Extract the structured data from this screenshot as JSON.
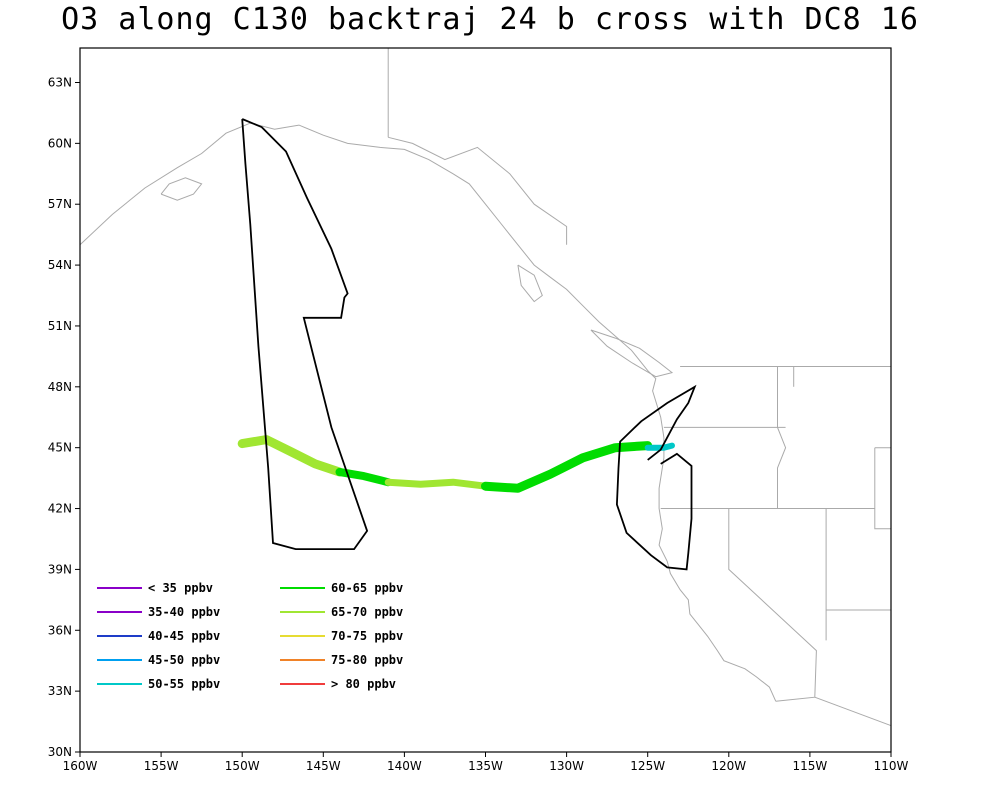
{
  "title": "O3 along C130 backtraj 24 b cross with DC8 16",
  "axes": {
    "lon_ticks": [
      "160W",
      "155W",
      "150W",
      "145W",
      "140W",
      "135W",
      "130W",
      "125W",
      "120W",
      "115W",
      "110W"
    ],
    "lat_ticks": [
      "30N",
      "33N",
      "36N",
      "39N",
      "42N",
      "45N",
      "48N",
      "51N",
      "54N",
      "57N",
      "60N",
      "63N"
    ]
  },
  "legend": [
    {
      "label": "< 35 ppbv",
      "color": "#8a00c8"
    },
    {
      "label": "35-40 ppbv",
      "color": "#8a00c8"
    },
    {
      "label": "40-45 ppbv",
      "color": "#1e3cc8"
    },
    {
      "label": "45-50 ppbv",
      "color": "#00a0f0"
    },
    {
      "label": "50-55 ppbv",
      "color": "#00c8c8"
    },
    {
      "label": "60-65 ppbv",
      "color": "#00dc00"
    },
    {
      "label": "65-70 ppbv",
      "color": "#a0e632"
    },
    {
      "label": "70-75 ppbv",
      "color": "#e6dc32"
    },
    {
      "label": "75-80 ppbv",
      "color": "#f08228"
    },
    {
      "label": "> 80 ppbv",
      "color": "#f03c3c"
    }
  ],
  "chart_data": {
    "type": "map",
    "projection": "lat-lon",
    "xlim": [
      -160,
      -110
    ],
    "ylim": [
      30,
      64.7
    ],
    "flight_track_color": "#000000",
    "coastline_color": "#aaaaaa",
    "flight_track": [
      [
        -150.0,
        61.2
      ],
      [
        -148.8,
        60.8
      ],
      [
        -147.3,
        59.6
      ],
      [
        -146.0,
        57.3
      ],
      [
        -144.5,
        54.8
      ],
      [
        -143.5,
        52.6
      ],
      [
        -143.7,
        52.4
      ],
      [
        -143.9,
        51.4
      ],
      [
        -146.2,
        51.4
      ],
      [
        -144.5,
        46.0
      ],
      [
        -142.3,
        40.9
      ],
      [
        -143.1,
        40.0
      ],
      [
        -146.7,
        40.0
      ],
      [
        -148.1,
        40.3
      ],
      [
        -148.4,
        44.0
      ],
      [
        -149.0,
        50.0
      ],
      [
        -149.5,
        56.0
      ],
      [
        -149.8,
        59.0
      ],
      [
        -150.0,
        61.2
      ]
    ],
    "flight_track_2": [
      [
        -124.2,
        44.2
      ],
      [
        -123.2,
        44.7
      ],
      [
        -122.3,
        44.1
      ],
      [
        -122.3,
        41.5
      ],
      [
        -122.5,
        39.8
      ],
      [
        -122.6,
        39.0
      ],
      [
        -123.8,
        39.1
      ],
      [
        -124.8,
        39.7
      ],
      [
        -126.3,
        40.8
      ],
      [
        -126.9,
        42.2
      ],
      [
        -126.8,
        44.0
      ],
      [
        -126.7,
        45.3
      ],
      [
        -125.4,
        46.3
      ],
      [
        -123.8,
        47.2
      ],
      [
        -122.1,
        48.0
      ],
      [
        -122.5,
        47.2
      ],
      [
        -123.2,
        46.4
      ],
      [
        -124.2,
        44.9
      ],
      [
        -125.0,
        44.4
      ]
    ],
    "trajectory_segments": [
      {
        "color": "#a0e632",
        "width": 9,
        "points": [
          [
            -150.0,
            45.2
          ],
          [
            -148.5,
            45.4
          ],
          [
            -147.0,
            44.8
          ],
          [
            -145.5,
            44.2
          ],
          [
            -144.0,
            43.8
          ]
        ]
      },
      {
        "color": "#00dc00",
        "width": 8,
        "points": [
          [
            -144.0,
            43.8
          ],
          [
            -142.5,
            43.6
          ],
          [
            -141.0,
            43.3
          ]
        ]
      },
      {
        "color": "#a0e632",
        "width": 7,
        "points": [
          [
            -141.0,
            43.3
          ],
          [
            -139.0,
            43.2
          ],
          [
            -137.0,
            43.3
          ],
          [
            -135.0,
            43.1
          ]
        ]
      },
      {
        "color": "#00dc00",
        "width": 9,
        "points": [
          [
            -135.0,
            43.1
          ],
          [
            -133.0,
            43.0
          ],
          [
            -131.0,
            43.7
          ],
          [
            -129.0,
            44.5
          ],
          [
            -127.0,
            45.0
          ],
          [
            -125.0,
            45.1
          ]
        ]
      },
      {
        "color": "#00c8c8",
        "width": 6,
        "points": [
          [
            -125.0,
            45.0
          ],
          [
            -124.0,
            45.0
          ],
          [
            -123.5,
            45.1
          ]
        ]
      }
    ],
    "coastline": [
      [
        [
          -160,
          55.0
        ],
        [
          -158.0,
          56.5
        ],
        [
          -156.0,
          57.8
        ],
        [
          -154.0,
          58.8
        ],
        [
          -152.5,
          59.5
        ],
        [
          -151.0,
          60.5
        ],
        [
          -149.5,
          61.0
        ],
        [
          -148.0,
          60.7
        ],
        [
          -146.5,
          60.9
        ],
        [
          -145.0,
          60.4
        ],
        [
          -143.5,
          60.0
        ],
        [
          -141.5,
          59.8
        ],
        [
          -140.0,
          59.7
        ],
        [
          -138.5,
          59.2
        ],
        [
          -137.0,
          58.5
        ],
        [
          -136.0,
          58.0
        ],
        [
          -135.0,
          57.0
        ],
        [
          -134.0,
          56.0
        ],
        [
          -133.0,
          55.0
        ],
        [
          -132.0,
          54.0
        ],
        [
          -131.0,
          53.4
        ],
        [
          -130.0,
          52.8
        ],
        [
          -129.0,
          52.0
        ],
        [
          -128.0,
          51.2
        ],
        [
          -127.0,
          50.5
        ],
        [
          -126.0,
          49.8
        ],
        [
          -125.0,
          48.8
        ],
        [
          -124.5,
          48.4
        ],
        [
          -124.7,
          47.8
        ],
        [
          -124.2,
          46.5
        ],
        [
          -124.0,
          45.5
        ],
        [
          -124.0,
          44.5
        ],
        [
          -124.3,
          43.0
        ],
        [
          -124.3,
          42.0
        ],
        [
          -124.1,
          41.0
        ],
        [
          -124.3,
          40.2
        ],
        [
          -123.8,
          39.4
        ],
        [
          -123.6,
          38.8
        ],
        [
          -123.0,
          38.0
        ],
        [
          -122.5,
          37.5
        ],
        [
          -122.4,
          36.8
        ],
        [
          -121.9,
          36.3
        ],
        [
          -121.3,
          35.7
        ],
        [
          -120.7,
          35.0
        ],
        [
          -120.3,
          34.5
        ],
        [
          -119.0,
          34.1
        ],
        [
          -118.3,
          33.7
        ],
        [
          -117.5,
          33.2
        ],
        [
          -117.1,
          32.5
        ]
      ],
      [
        [
          -155,
          57.5
        ],
        [
          -154,
          57.2
        ],
        [
          -153,
          57.5
        ],
        [
          -152.5,
          58.0
        ],
        [
          -153.5,
          58.3
        ],
        [
          -154.5,
          58.0
        ],
        [
          -155,
          57.5
        ]
      ],
      [
        [
          -133.0,
          54.0
        ],
        [
          -132.0,
          53.5
        ],
        [
          -131.5,
          52.5
        ],
        [
          -132.0,
          52.2
        ],
        [
          -132.8,
          53.0
        ],
        [
          -133.0,
          54.0
        ]
      ],
      [
        [
          -128.5,
          50.8
        ],
        [
          -127.0,
          50.4
        ],
        [
          -125.5,
          49.9
        ],
        [
          -124.3,
          49.2
        ],
        [
          -123.5,
          48.7
        ],
        [
          -124.5,
          48.5
        ],
        [
          -126.0,
          49.2
        ],
        [
          -127.5,
          50.0
        ],
        [
          -128.5,
          50.8
        ]
      ]
    ],
    "borders": [
      [
        [
          -141.0,
          64.7
        ],
        [
          -141.0,
          60.3
        ]
      ],
      [
        [
          -141.0,
          60.3
        ],
        [
          -139.5,
          60.0
        ],
        [
          -137.5,
          59.2
        ],
        [
          -135.5,
          59.8
        ],
        [
          -133.5,
          58.5
        ],
        [
          -132.0,
          57.0
        ],
        [
          -130.0,
          55.9
        ],
        [
          -130.0,
          55.0
        ]
      ],
      [
        [
          -123.0,
          49.0
        ],
        [
          -110,
          49.0
        ]
      ],
      [
        [
          -117.0,
          49.0
        ],
        [
          -117.0,
          46.0
        ],
        [
          -116.5,
          46.0
        ]
      ],
      [
        [
          -124.0,
          46.0
        ],
        [
          -117.0,
          46.0
        ],
        [
          -116.5,
          45.0
        ],
        [
          -117.0,
          44.0
        ],
        [
          -117.0,
          42.0
        ]
      ],
      [
        [
          -124.2,
          42.0
        ],
        [
          -111.0,
          42.0
        ]
      ],
      [
        [
          -120.0,
          42.0
        ],
        [
          -120.0,
          39.0
        ],
        [
          -114.6,
          35.0
        ],
        [
          -114.7,
          32.7
        ],
        [
          -117.1,
          32.5
        ]
      ],
      [
        [
          -114.0,
          42.0
        ],
        [
          -114.0,
          35.5
        ]
      ],
      [
        [
          -116.0,
          49.0
        ],
        [
          -116.0,
          48.0
        ]
      ],
      [
        [
          -111.0,
          45.0
        ],
        [
          -110,
          45.0
        ]
      ],
      [
        [
          -111.0,
          45.0
        ],
        [
          -111.0,
          41.0
        ],
        [
          -110,
          41.0
        ]
      ],
      [
        [
          -114.0,
          37.0
        ],
        [
          -110,
          37.0
        ]
      ],
      [
        [
          -114.7,
          32.7
        ],
        [
          -110,
          31.3
        ]
      ]
    ]
  }
}
